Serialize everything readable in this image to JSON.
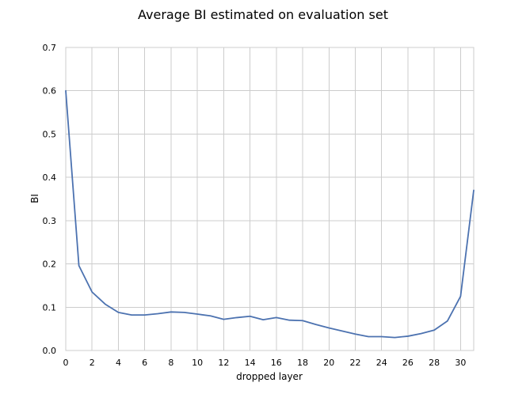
{
  "chart_data": {
    "type": "line",
    "title": "Average BI estimated on evaluation set",
    "xlabel": "dropped layer",
    "ylabel": "BI",
    "xlim": [
      0,
      31
    ],
    "ylim": [
      0,
      0.7
    ],
    "x_ticks": [
      0,
      2,
      4,
      6,
      8,
      10,
      12,
      14,
      16,
      18,
      20,
      22,
      24,
      26,
      28,
      30
    ],
    "y_ticks": [
      0.0,
      0.1,
      0.2,
      0.3,
      0.4,
      0.5,
      0.6,
      0.7
    ],
    "y_tick_labels": [
      "0.0",
      "0.1",
      "0.2",
      "0.3",
      "0.4",
      "0.5",
      "0.6",
      "0.7"
    ],
    "grid": true,
    "series": [
      {
        "color": "#4c72b0",
        "x": [
          0,
          1,
          2,
          3,
          4,
          5,
          6,
          7,
          8,
          9,
          10,
          11,
          12,
          13,
          14,
          15,
          16,
          17,
          18,
          19,
          20,
          21,
          22,
          23,
          24,
          25,
          26,
          27,
          28,
          29,
          30,
          31
        ],
        "values": [
          0.6,
          0.196,
          0.135,
          0.107,
          0.088,
          0.082,
          0.082,
          0.085,
          0.089,
          0.088,
          0.084,
          0.08,
          0.072,
          0.076,
          0.079,
          0.071,
          0.076,
          0.07,
          0.069,
          0.06,
          0.052,
          0.045,
          0.038,
          0.032,
          0.032,
          0.03,
          0.033,
          0.039,
          0.047,
          0.068,
          0.125,
          0.37
        ]
      }
    ]
  }
}
